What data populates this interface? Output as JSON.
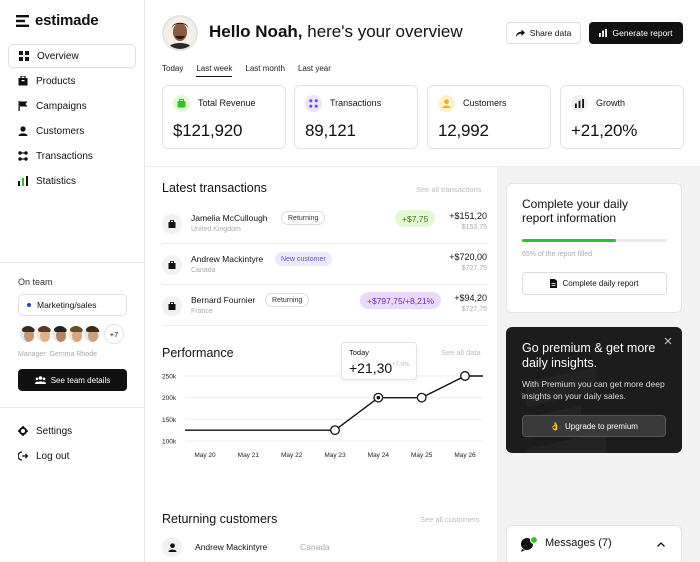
{
  "brand": {
    "name": "estimade"
  },
  "sidebar": {
    "items": [
      {
        "label": "Overview",
        "icon": "grid-icon",
        "active": true
      },
      {
        "label": "Products",
        "icon": "cube-icon",
        "active": false
      },
      {
        "label": "Campaigns",
        "icon": "flag-icon",
        "active": false
      },
      {
        "label": "Customers",
        "icon": "user-icon",
        "active": false
      },
      {
        "label": "Transactions",
        "icon": "transactions-icon",
        "active": false
      },
      {
        "label": "Statistics",
        "icon": "bar-chart-icon",
        "active": false
      }
    ],
    "team": {
      "label": "On team",
      "selected": "Marketing/sales",
      "more_count": "+7",
      "manager": "Manager: Gemma Rhode",
      "button": "See team details"
    },
    "bottom": [
      {
        "label": "Settings",
        "icon": "gear-icon"
      },
      {
        "label": "Log out",
        "icon": "logout-icon"
      }
    ]
  },
  "header": {
    "greeting_bold": "Hello Noah,",
    "greeting_rest": " here's your overview",
    "share_label": "Share data",
    "report_label": "Generate report"
  },
  "tabs": [
    {
      "label": "Today",
      "active": false
    },
    {
      "label": "Last week",
      "active": true
    },
    {
      "label": "Last month",
      "active": false
    },
    {
      "label": "Last year",
      "active": false
    }
  ],
  "stats": [
    {
      "label": "Total Revenue",
      "value": "$121,920",
      "icon": "wallet-icon",
      "color": "#e4f7d4"
    },
    {
      "label": "Transactions",
      "value": "89,121",
      "icon": "transactions-icon",
      "color": "#ede4fb"
    },
    {
      "label": "Customers",
      "value": "12,992",
      "icon": "user-icon",
      "color": "#fdf2cf"
    },
    {
      "label": "Growth",
      "value": "+21,20%",
      "icon": "bar-chart-icon",
      "color": "#efefef"
    }
  ],
  "latest": {
    "title": "Latest transactions",
    "see_all": "See all transactions",
    "rows": [
      {
        "name": "Jamelia McCullough",
        "location": "United Kingdom",
        "tag": "Returning",
        "tag_style": "gray",
        "delta": "+$7,75",
        "delta_style": "green",
        "amount": "+$151,20",
        "sub": "$153,75"
      },
      {
        "name": "Andrew Mackintyre",
        "location": "Canada",
        "tag": "New customer",
        "tag_style": "purple",
        "delta": "",
        "delta_style": "",
        "amount": "+$720,00",
        "sub": "$727,75"
      },
      {
        "name": "Bernard Fournier",
        "location": "France",
        "tag": "Returning",
        "tag_style": "gray",
        "delta": "+$797,75/+8,21%",
        "delta_style": "purple",
        "amount": "+$94,20",
        "sub": "$727,75"
      }
    ]
  },
  "performance": {
    "title": "Performance",
    "see_all": "See all data",
    "tooltip": {
      "label": "Today",
      "value": "+21,30",
      "pct": "+7,9%"
    }
  },
  "chart_data": {
    "type": "line",
    "x": [
      "May 20",
      "May 21",
      "May 22",
      "May 23",
      "May 24",
      "May 25",
      "May 26"
    ],
    "y_ticks": [
      "250k",
      "200k",
      "150k",
      "100k"
    ],
    "ylim": [
      100000,
      250000
    ],
    "series": [
      {
        "values": [
          125000,
          125000,
          125000,
          125000,
          200000,
          200000,
          250000
        ]
      }
    ],
    "grid": true
  },
  "daily": {
    "title": "Complete your daily report information",
    "progress": 0.65,
    "progress_label": "65% of the report filled",
    "button": "Complete daily report"
  },
  "premium": {
    "title": "Go premium & get more daily insights.",
    "text": "With Premium you can get more deep insights on your daily sales.",
    "button": "Upgrade to premium",
    "emoji": "👌"
  },
  "returning": {
    "title": "Returning customers",
    "see_all": "See all customers",
    "rows": [
      {
        "name": "Andrew Mackintyre",
        "country": "Canada"
      }
    ]
  },
  "messages": {
    "label": "Messages (7)"
  },
  "colors": {
    "accent": "#111111",
    "green": "#2fc22b",
    "purple": "#6b4fd8"
  }
}
